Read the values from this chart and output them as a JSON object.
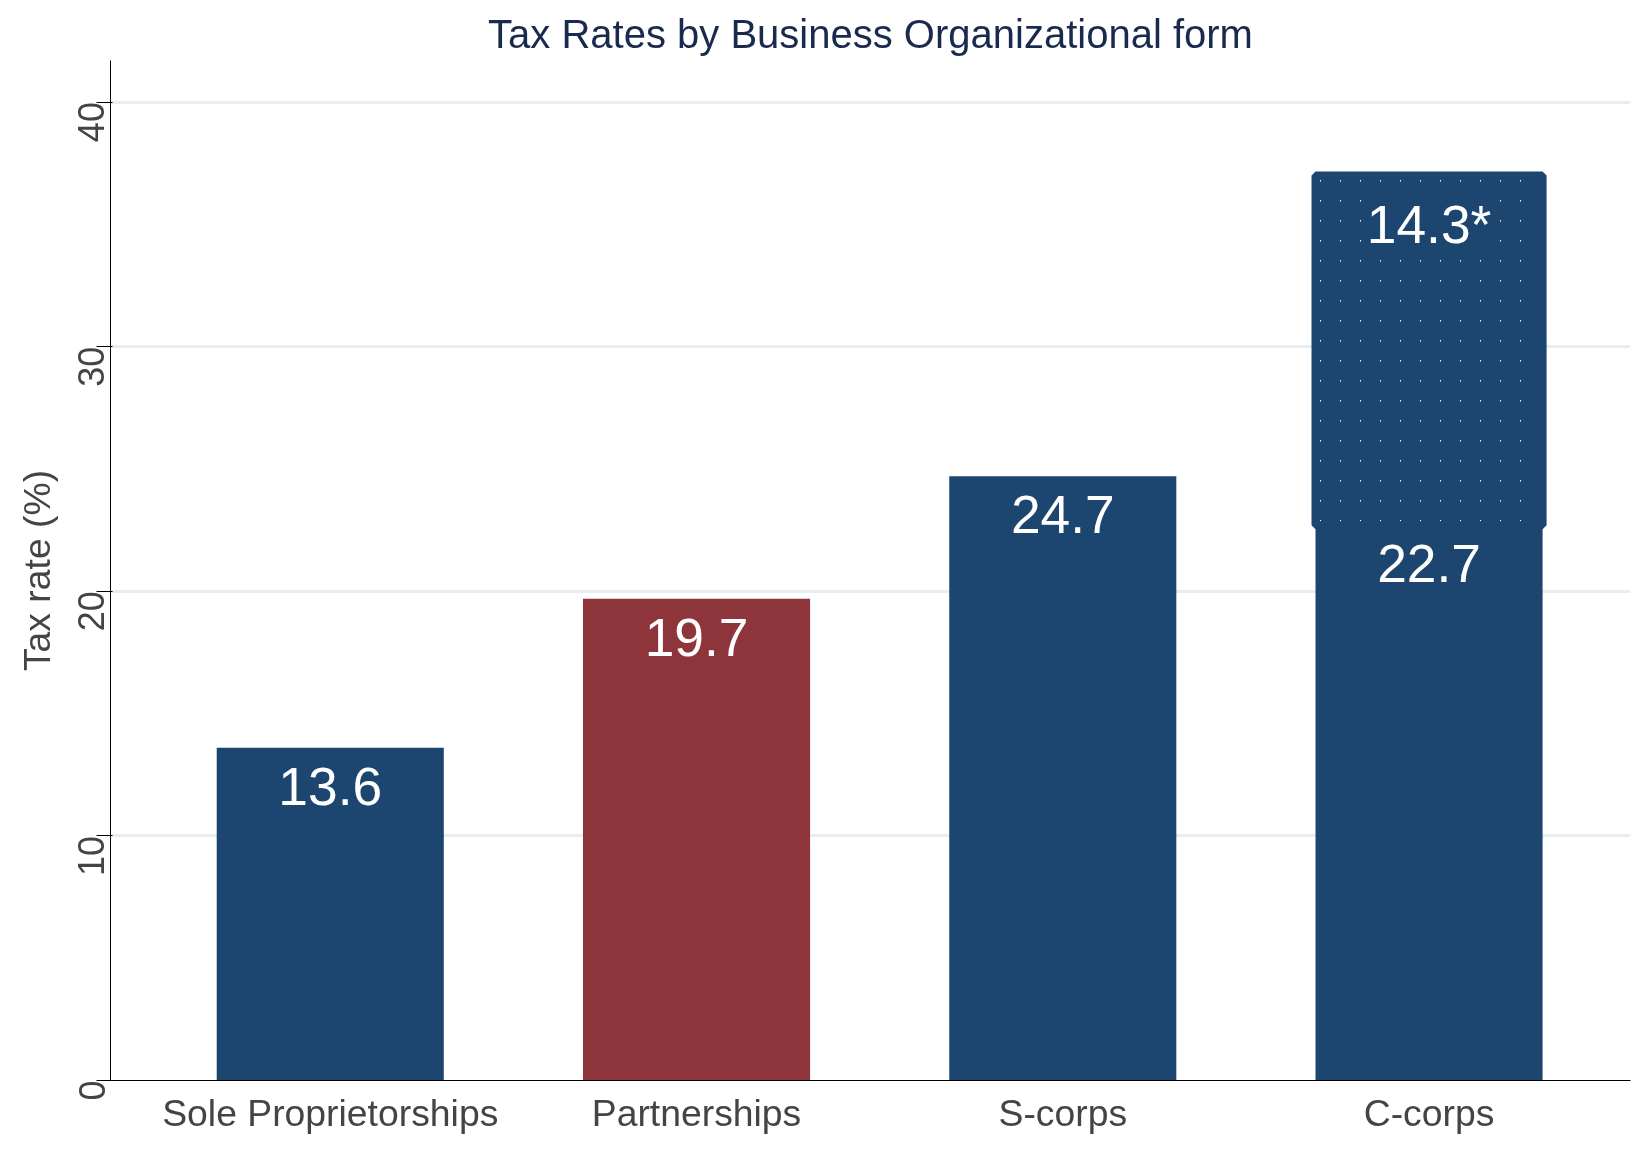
{
  "chart_data": {
    "type": "bar",
    "title": "Tax Rates by Business Organizational form",
    "ylabel": "Tax rate (%)",
    "categories": [
      "Sole Proprietorships",
      "Partnerships",
      "S-corps",
      "C-corps"
    ],
    "stacked": true,
    "series": [
      {
        "colors": [
          "#1c4670",
          "#8e353c",
          "#1c4670",
          "#1c4670"
        ],
        "values": [
          13.6,
          19.7,
          24.7,
          22.7
        ],
        "value_labels": [
          "13.6",
          "19.7",
          "24.7",
          "22.7"
        ]
      },
      {
        "color": "#1c4670",
        "values": [
          null,
          null,
          null,
          14.3
        ],
        "value_labels": [
          null,
          null,
          null,
          "14.3*"
        ]
      }
    ],
    "ylim": [
      0,
      41.7
    ],
    "yticks": [
      0,
      10,
      20,
      30,
      40
    ],
    "grid": "y"
  }
}
